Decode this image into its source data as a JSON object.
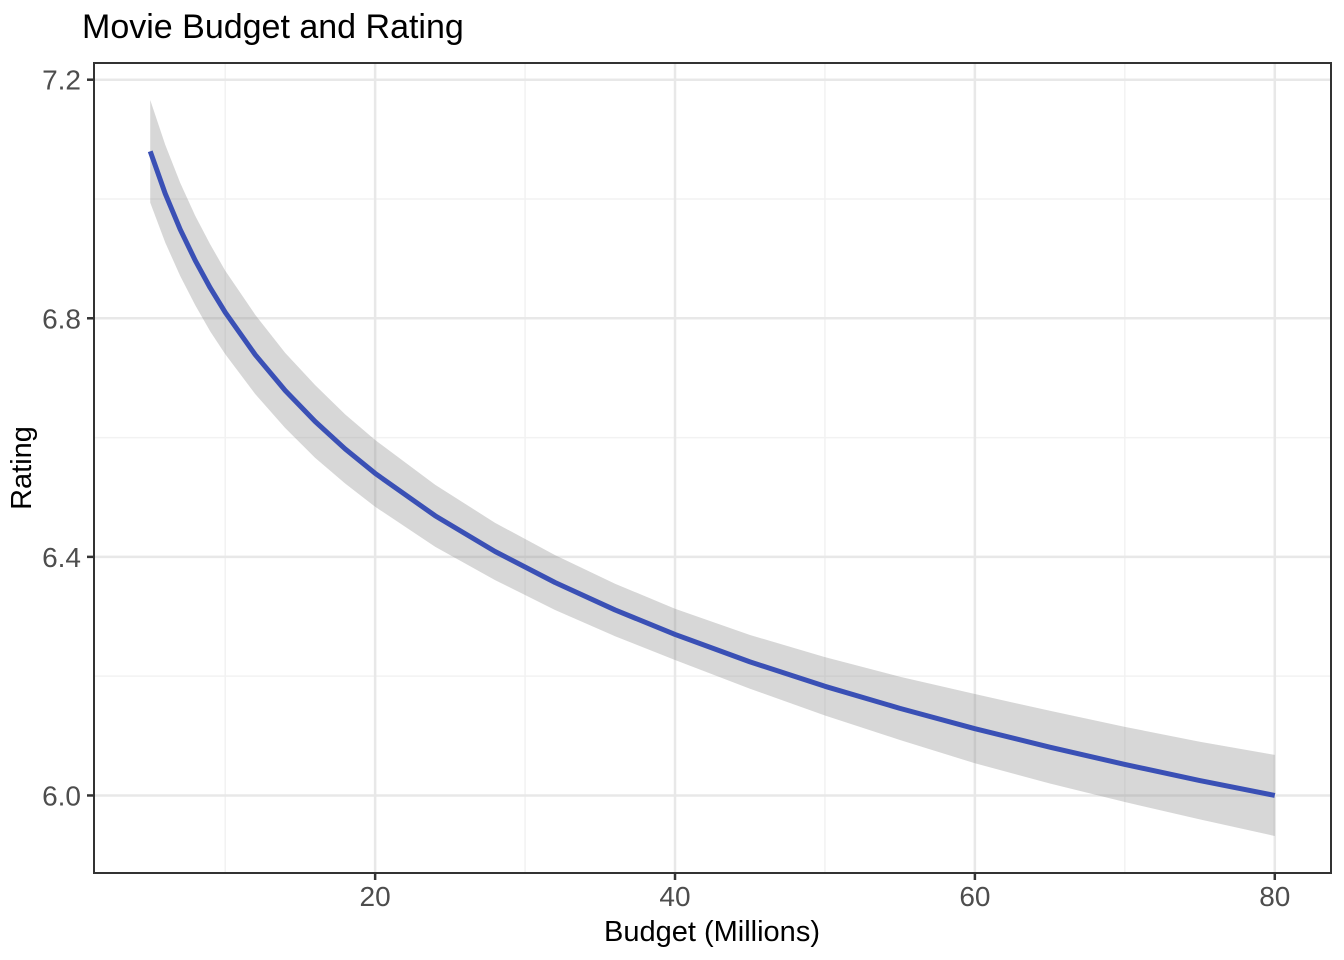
{
  "chart_data": {
    "type": "line",
    "title": "Movie Budget and Rating",
    "xlabel": "Budget (Millions)",
    "ylabel": "Rating",
    "x": [
      5,
      6,
      7,
      8,
      9,
      10,
      12,
      14,
      16,
      18,
      20,
      24,
      28,
      32,
      36,
      40,
      45,
      50,
      55,
      60,
      65,
      70,
      75,
      80
    ],
    "series": [
      {
        "name": "fit",
        "values": [
          7.08,
          7.009,
          6.949,
          6.897,
          6.851,
          6.81,
          6.739,
          6.679,
          6.627,
          6.581,
          6.54,
          6.469,
          6.409,
          6.357,
          6.311,
          6.27,
          6.224,
          6.183,
          6.146,
          6.112,
          6.081,
          6.052,
          6.025,
          6.0
        ]
      },
      {
        "name": "ci_lower",
        "values": [
          6.994,
          6.927,
          6.871,
          6.822,
          6.778,
          6.74,
          6.673,
          6.616,
          6.566,
          6.523,
          6.484,
          6.417,
          6.361,
          6.311,
          6.267,
          6.227,
          6.179,
          6.134,
          6.093,
          6.054,
          6.02,
          5.989,
          5.96,
          5.932
        ]
      },
      {
        "name": "ci_upper",
        "values": [
          7.166,
          7.091,
          7.027,
          6.972,
          6.924,
          6.88,
          6.806,
          6.742,
          6.688,
          6.639,
          6.596,
          6.521,
          6.457,
          6.403,
          6.355,
          6.313,
          6.269,
          6.232,
          6.199,
          6.17,
          6.142,
          6.115,
          6.09,
          6.068
        ]
      }
    ],
    "x_ticks": [
      20,
      40,
      60,
      80
    ],
    "x_tick_labels": [
      "20",
      "40",
      "60",
      "80"
    ],
    "x_minor_ticks": [
      10,
      30,
      50,
      70
    ],
    "y_ticks": [
      6.0,
      6.4,
      6.8,
      7.2
    ],
    "y_tick_labels": [
      "6.0",
      "6.4",
      "6.8",
      "7.2"
    ],
    "y_minor_ticks": [
      6.2,
      6.6,
      7.0
    ],
    "xlim": [
      1.25,
      83.75
    ],
    "ylim": [
      5.87,
      7.228
    ],
    "grid": true,
    "legend": "none",
    "colors": {
      "line": "#3a50b5",
      "ribbon": "#8c8c8c",
      "ribbon_alpha": 0.35,
      "grid_major": "#e8e8e8",
      "grid_minor": "#f2f2f2",
      "panel_border": "#333333",
      "tick_mark": "#333333",
      "tick_text": "#4d4d4d",
      "axis_title_text": "#000000",
      "title_text": "#000000",
      "panel_bg": "#ffffff"
    }
  }
}
